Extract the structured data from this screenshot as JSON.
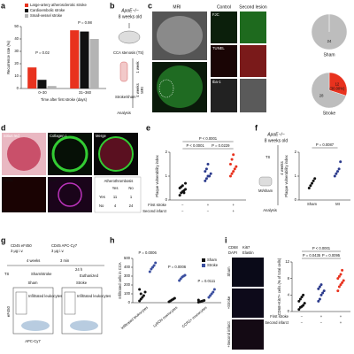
{
  "panel_letters": [
    "a",
    "b",
    "c",
    "d",
    "e",
    "f",
    "g",
    "h",
    "i"
  ],
  "chart_data": [
    {
      "type": "bar",
      "categories": [
        "0–30",
        "31–360"
      ],
      "xlabel": "Time after first stroke (days)",
      "ylabel": "Recurrence rate (%)",
      "ylim": [
        0,
        50
      ],
      "yticks": [
        0,
        10,
        20,
        30,
        40,
        50
      ],
      "series": [
        {
          "name": "Large-artery atherosclerotic stroke",
          "color": "#e8321e",
          "values": [
            17,
            47
          ]
        },
        {
          "name": "Cardioembolic stroke",
          "color": "#111111",
          "values": [
            7,
            46
          ]
        },
        {
          "name": "Small-vessel stroke",
          "color": "#b4b4b4",
          "values": [
            2,
            40
          ]
        }
      ],
      "annotations": [
        "P = 0.02",
        "P = 0.98"
      ]
    },
    {
      "type": "pie",
      "title": "Sham",
      "values": [
        0,
        24
      ],
      "colors": [
        "#e8321e",
        "#bdbdbd"
      ]
    },
    {
      "type": "pie",
      "title": "Stroke",
      "values": [
        12,
        28
      ],
      "colors": [
        "#e8321e",
        "#bdbdbd"
      ],
      "annotations": [
        "(30.00%)"
      ]
    },
    {
      "type": "dot",
      "ylabel": "Plaque vulnerability index",
      "ylim": [
        0,
        2
      ],
      "yticks": [
        0,
        1,
        2
      ],
      "colors": [
        "#111111",
        "#2b3a8c",
        "#e8321e"
      ],
      "series": [
        {
          "values": [
            [
              0.2,
              0.3,
              0.35,
              0.4,
              0.45,
              0.5,
              0.55,
              0.6,
              0.3,
              0.7
            ],
            [
              0.8,
              0.9,
              1.0,
              1.0,
              1.1,
              1.2,
              1.3,
              1.5
            ],
            [
              1.0,
              1.1,
              1.2,
              1.3,
              1.4,
              1.5,
              1.7,
              1.9
            ]
          ]
        }
      ],
      "rows": [
        {
          "label": "First stroke",
          "marks": [
            "−",
            "+",
            "+"
          ]
        },
        {
          "label": "Second infarct",
          "marks": [
            "−",
            "−",
            "+"
          ]
        }
      ],
      "annotations": [
        "P < 0.0001",
        "P < 0.0001",
        "P = 0.0229"
      ]
    },
    {
      "type": "dot",
      "categories": [
        "Sham",
        "MI"
      ],
      "ylabel": "Plaque vulnerability index",
      "ylim": [
        0,
        2
      ],
      "yticks": [
        0,
        1,
        2
      ],
      "colors": [
        "#111111",
        "#2b3a8c"
      ],
      "series": [
        {
          "values": [
            [
              0.5,
              0.6,
              0.7,
              0.8,
              0.9
            ],
            [
              1.0,
              1.1,
              1.2,
              1.3,
              1.6
            ]
          ]
        }
      ],
      "annotations": [
        "P = 0.0087"
      ]
    },
    {
      "type": "dot",
      "categories": [
        "Infiltrated leukocytes",
        "Ly6Chi monocytes",
        "CCR2+ monocytes"
      ],
      "ylabel": "Infiltrated cells in CCA",
      "ylim": [
        0,
        500
      ],
      "yticks": [
        0,
        100,
        200,
        300,
        400,
        500
      ],
      "series": [
        {
          "name": "Sham",
          "color": "#111111",
          "values": [
            [
              20,
              40,
              60,
              80,
              120,
              150,
              100
            ],
            [
              10,
              20,
              30,
              40,
              50
            ],
            [
              5,
              10,
              15,
              20,
              25,
              30
            ]
          ]
        },
        {
          "name": "Stroke",
          "color": "#3b4fa0",
          "values": [
            [
              350,
              380,
              400,
              420,
              450
            ],
            [
              250,
              270,
              290,
              300,
              310
            ],
            [
              60,
              80,
              100,
              120,
              150
            ]
          ]
        }
      ],
      "annotations": [
        "P = 0.0006",
        "P = 0.0006",
        "P = 0.0111"
      ]
    },
    {
      "type": "dot",
      "ylabel": "CD68+Ki67+ cells (% of total cells)",
      "ylim": [
        0,
        12
      ],
      "yticks": [
        0,
        4,
        8,
        12
      ],
      "colors": [
        "#111111",
        "#2b3a8c",
        "#e8321e"
      ],
      "series": [
        {
          "values": [
            [
              0.5,
              1,
              1.2,
              1.5,
              2,
              2.5,
              3,
              3.5,
              4
            ],
            [
              2.5,
              3,
              4,
              4.5,
              5,
              5.5,
              6,
              6.5
            ],
            [
              5,
              6,
              6.5,
              7,
              7.5,
              8,
              8.5,
              9,
              10
            ]
          ]
        }
      ],
      "rows": [
        {
          "label": "First stroke",
          "marks": [
            "−",
            "+",
            "+"
          ]
        },
        {
          "label": "Second infarct",
          "marks": [
            "−",
            "−",
            "+"
          ]
        }
      ],
      "annotations": [
        "P < 0.0001",
        "P = 0.0435",
        "P = 0.0095"
      ]
    }
  ],
  "b": [
    "ApoE−/−",
    "8 weeks old",
    "CCA stenosis (TS)",
    "1 week",
    "4 weeks",
    "Stroke/sham",
    "Analysis",
    "MRI"
  ],
  "c": [
    "MRI",
    "Control",
    "Second lesion",
    "FJC",
    "TUNEL",
    "Iba-1"
  ],
  "d": {
    "images": [
      "Sirius red",
      "Collagen I",
      "Merge",
      "CD41",
      "vWF"
    ],
    "table": {
      "title": "Atherothrombosis",
      "header": [
        "Yes",
        "No"
      ],
      "rows": [
        [
          "Yes",
          "11",
          "1"
        ],
        [
          "No",
          "4",
          "24"
        ]
      ]
    }
  },
  "f": [
    "ApoE−/−",
    "8 weeks old",
    "TS",
    "4 weeks",
    "MI/sham",
    "Analysis"
  ],
  "g": [
    "CD45 eF450",
    "3 μg i.v.",
    "CD45 APC-Cy7",
    "3 μg i.v.",
    "4 weeks",
    "3 min",
    "24 h",
    "TS",
    "Sham/stroke",
    "Euthanized",
    "Sham",
    "Stroke",
    "Infiltrated leukocytes",
    "Infiltrated leukocytes",
    "eF450",
    "APC-Cy7"
  ],
  "i": [
    "CD68",
    "Ki67",
    "DAPI",
    "Elastin",
    "Sham",
    "+Stroke",
    "+Second infarct"
  ]
}
